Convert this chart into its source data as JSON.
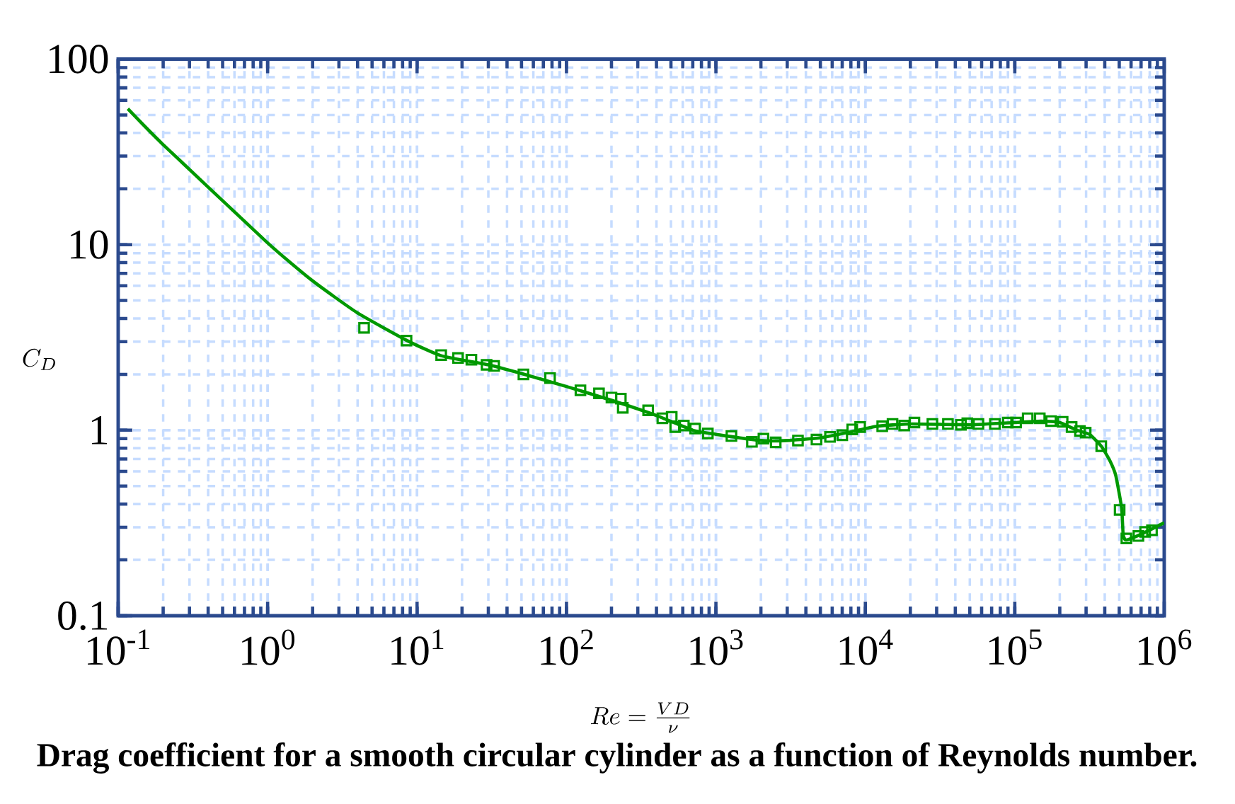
{
  "chart_data": {
    "type": "line",
    "xlabel": "Re = \\frac{VD}{\\nu}",
    "ylabel": "C_D",
    "annotations": [
      "Drag coefficient for a smooth circular cylinder as a function of  Reynolds number."
    ],
    "log": "xy",
    "grid": true,
    "xlim": [
      0.1,
      1000000
    ],
    "ylim": [
      0.1,
      100
    ],
    "xticks": [
      {
        "value": 0.1,
        "label": "10$^{-1}$"
      },
      {
        "value": 1,
        "label": "10$^{0}$"
      },
      {
        "value": 10,
        "label": "10$^{1}$"
      },
      {
        "value": 100,
        "label": "10$^{2}$"
      },
      {
        "value": 1000,
        "label": "10$^{3}$"
      },
      {
        "value": 10000,
        "label": "10$^{4}$"
      },
      {
        "value": 100000,
        "label": "10$^{5}$"
      },
      {
        "value": 1000000,
        "label": "10$^{6}$"
      }
    ],
    "yticks": [
      0.1,
      1,
      10,
      100
    ],
    "series": [
      {
        "color": "#009900",
        "x": [
          0.116,
          0.197,
          0.99,
          1.96,
          3.97,
          8.65,
          14.5,
          30,
          50,
          100,
          200,
          400,
          700,
          1000,
          2000,
          3000,
          5000,
          8000,
          12000,
          20000,
          50000,
          100000,
          150000,
          200000,
          260000,
          316000,
          379000,
          433000,
          474000,
          519000,
          531000,
          556000,
          700000,
          1000000
        ],
        "values": [
          54,
          35,
          10.3,
          6.46,
          4.3,
          3.03,
          2.52,
          2.25,
          2.02,
          1.72,
          1.45,
          1.2,
          1.0,
          0.95,
          0.88,
          0.88,
          0.91,
          0.98,
          1.05,
          1.08,
          1.07,
          1.1,
          1.12,
          1.1,
          1.0,
          0.95,
          0.82,
          0.685,
          0.57,
          0.38,
          0.275,
          0.256,
          0.275,
          0.317
        ]
      },
      {
        "type": "scatter",
        "marker": "square",
        "color": "#009900",
        "x": [
          4.42,
          8.5,
          14.5,
          18.8,
          23.1,
          29.2,
          32.8,
          238,
          438,
          506,
          534,
          610,
          726,
          883,
          1270,
          1742,
          2080,
          2512,
          3540,
          4710,
          5800,
          7010,
          8170,
          9230,
          12970,
          15200,
          18200,
          21300,
          28100,
          35700,
          43600,
          48100,
          57100,
          73600,
          89800,
          102000,
          240000
        ],
        "values": [
          3.56,
          3.04,
          2.54,
          2.45,
          2.4,
          2.25,
          2.22,
          1.32,
          1.16,
          1.18,
          1.04,
          1.06,
          1.02,
          0.96,
          0.93,
          0.865,
          0.9,
          0.86,
          0.88,
          0.89,
          0.92,
          0.94,
          1.01,
          1.04,
          1.05,
          1.08,
          1.06,
          1.1,
          1.08,
          1.08,
          1.07,
          1.09,
          1.08,
          1.08,
          1.1,
          1.1,
          1.04
        ]
      },
      {
        "type": "scatter",
        "marker": "square",
        "color": "#009900",
        "x": [
          51.5,
          77.6,
          124,
          165,
          200,
          231,
          352,
          122000,
          147000,
          175000,
          209000,
          273000,
          298000,
          379000,
          503000,
          558000,
          672000,
          745000,
          828000
        ],
        "values": [
          2.0,
          1.91,
          1.64,
          1.58,
          1.5,
          1.48,
          1.28,
          1.16,
          1.16,
          1.12,
          1.11,
          0.99,
          0.97,
          0.82,
          0.372,
          0.261,
          0.269,
          0.283,
          0.289
        ]
      }
    ]
  }
}
